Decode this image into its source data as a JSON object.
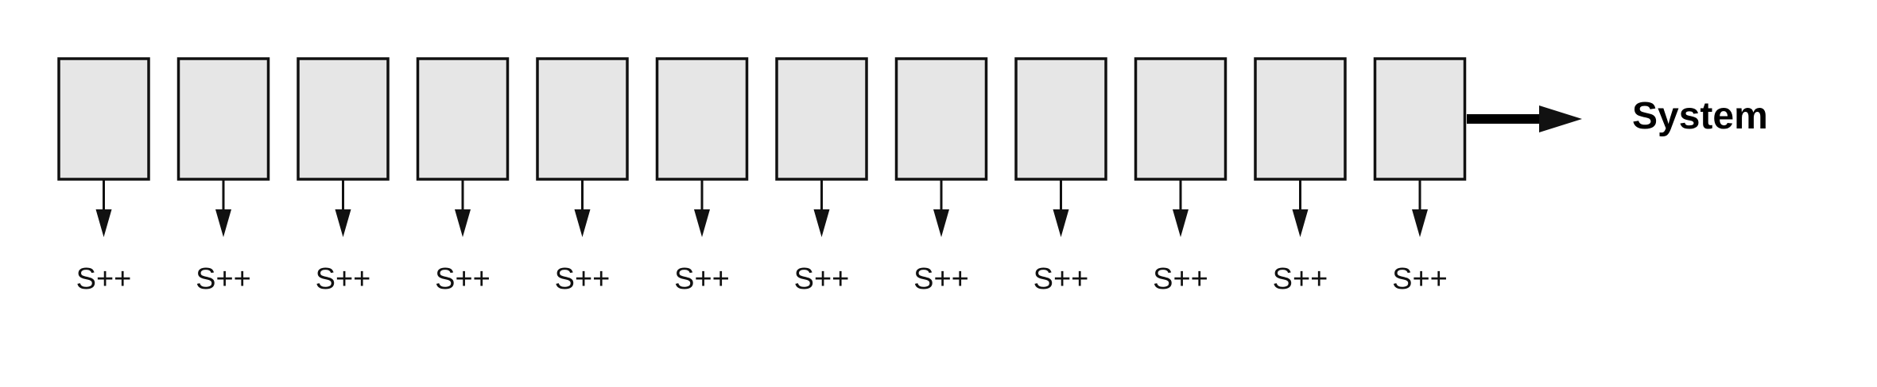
{
  "diagram": {
    "units": [
      {
        "label": "S++"
      },
      {
        "label": "S++"
      },
      {
        "label": "S++"
      },
      {
        "label": "S++"
      },
      {
        "label": "S++"
      },
      {
        "label": "S++"
      },
      {
        "label": "S++"
      },
      {
        "label": "S++"
      },
      {
        "label": "S++"
      },
      {
        "label": "S++"
      },
      {
        "label": "S++"
      },
      {
        "label": "S++"
      }
    ],
    "system_label": "System",
    "colors": {
      "box_fill": "#e6e6e6",
      "stroke": "#111111"
    }
  }
}
